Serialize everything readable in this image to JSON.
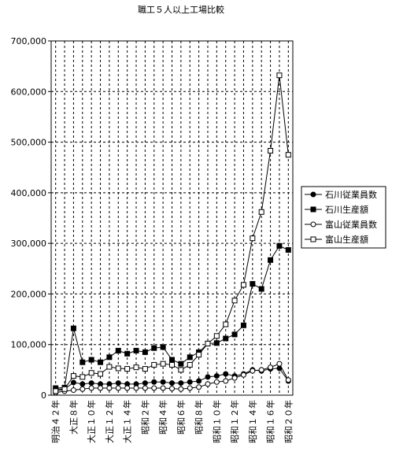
{
  "chart_data": {
    "type": "line",
    "title": "職工５人以上工場比較",
    "categories": [
      "明治４２年",
      null,
      "大正８年",
      null,
      "大正１０年",
      null,
      "大正１２年",
      null,
      "大正１４年",
      null,
      "昭和２年",
      null,
      "昭和４年",
      null,
      "昭和６年",
      null,
      "昭和８年",
      null,
      "昭和１０年",
      null,
      "昭和１２年",
      null,
      "昭和１４年",
      null,
      "昭和１６年",
      null,
      "昭和２０年"
    ],
    "series": [
      {
        "name": "石川従業員数",
        "color": "#000000",
        "marker": "filled-circle",
        "values": [
          12000,
          12000,
          25000,
          22000,
          24000,
          22000,
          22000,
          24000,
          22000,
          22000,
          24000,
          26000,
          26000,
          24000,
          24000,
          26000,
          28000,
          36000,
          38000,
          42000,
          38000,
          42000,
          50000,
          48000,
          52000,
          53000,
          28000
        ]
      },
      {
        "name": "石川生産額",
        "color": "#000000",
        "marker": "filled-square",
        "values": [
          14000,
          15000,
          132000,
          65000,
          70000,
          65000,
          75000,
          88000,
          82000,
          88000,
          85000,
          93000,
          95000,
          70000,
          62000,
          75000,
          85000,
          102000,
          103000,
          112000,
          120000,
          138000,
          220000,
          210000,
          267000,
          295000,
          287000
        ]
      },
      {
        "name": "富山従業員数",
        "color": "#000000",
        "marker": "open-circle",
        "values": [
          5000,
          8000,
          10000,
          12000,
          14000,
          14000,
          14000,
          14000,
          14000,
          14000,
          14000,
          14000,
          14000,
          13000,
          12000,
          14000,
          16000,
          22000,
          26000,
          28000,
          34000,
          40000,
          48000,
          50000,
          55000,
          62000,
          30000
        ]
      },
      {
        "name": "富山生産額",
        "color": "#000000",
        "marker": "open-square",
        "values": [
          8000,
          12000,
          38000,
          36000,
          44000,
          42000,
          56000,
          53000,
          52000,
          55000,
          52000,
          60000,
          62000,
          60000,
          50000,
          60000,
          80000,
          102000,
          117000,
          140000,
          187000,
          218000,
          310000,
          362000,
          483000,
          632000,
          475000
        ]
      }
    ],
    "ylim": [
      0,
      700000
    ],
    "yticks": [
      0,
      {
        "value": 100000,
        "label": "100,000"
      },
      {
        "value": 200000,
        "label": "200,000"
      },
      {
        "value": 300000,
        "label": "300,000"
      },
      {
        "value": 400000,
        "label": "400,000"
      },
      {
        "value": 500000,
        "label": "500,000"
      },
      {
        "value": 600000,
        "label": "600,000"
      },
      {
        "value": 700000,
        "label": "700,000"
      }
    ],
    "grid": true,
    "legend": "right"
  }
}
